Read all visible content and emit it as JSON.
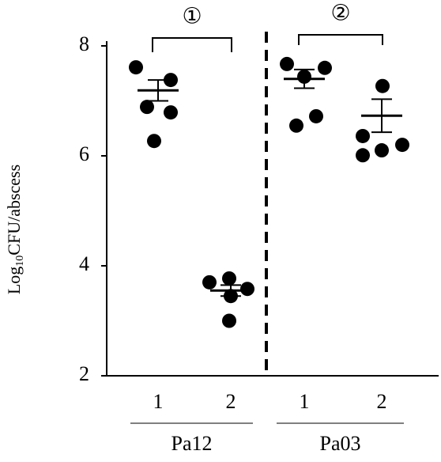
{
  "chart_data": {
    "type": "scatter",
    "y_label": {
      "prefix": "Log",
      "subscript": "10",
      "suffix": "CFU/abscess"
    },
    "categories": [
      "1",
      "2",
      "1",
      "2"
    ],
    "groups": [
      {
        "label": "Pa12",
        "categories": [
          0,
          1
        ]
      },
      {
        "label": "Pa03",
        "categories": [
          2,
          3
        ]
      }
    ],
    "points": [
      [
        7.61,
        7.38,
        6.89,
        6.79,
        6.27
      ],
      [
        3.7,
        3.77,
        3.58,
        3.45,
        3.0
      ],
      [
        7.67,
        7.6,
        7.44,
        6.72,
        6.55
      ],
      [
        7.27,
        6.36,
        6.1,
        6.2,
        6.01
      ]
    ],
    "means": [
      7.19,
      3.55,
      7.4,
      6.73
    ],
    "errors": [
      0.19,
      0.1,
      0.17,
      0.3
    ],
    "color": "#000000",
    "annotations": [
      {
        "text": "①",
        "from": 0,
        "to": 1
      },
      {
        "text": "②",
        "from": 2,
        "to": 3
      }
    ],
    "ylim": [
      2,
      8
    ],
    "yticks": [
      2,
      4,
      6,
      8
    ]
  }
}
